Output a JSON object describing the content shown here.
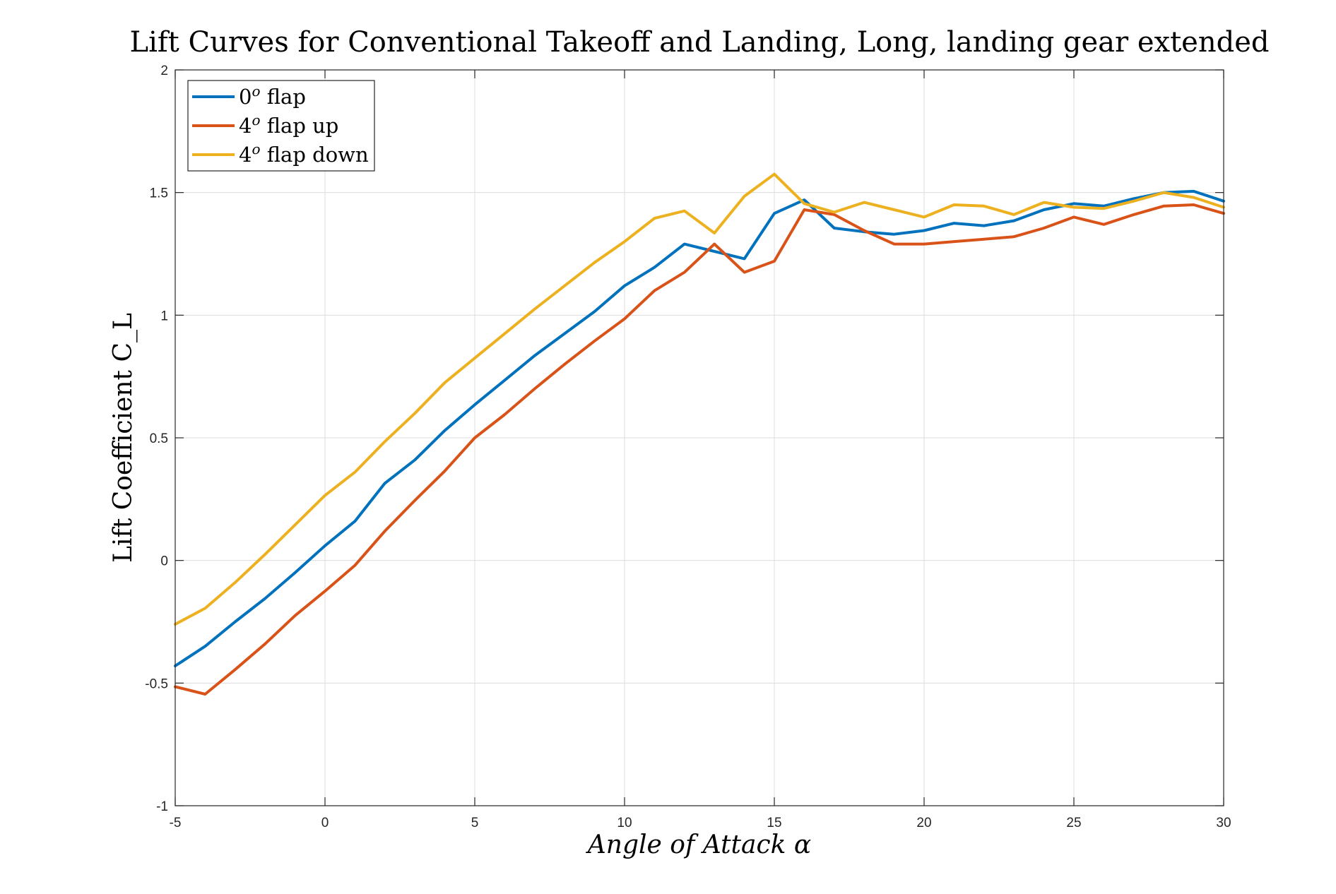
{
  "chart_data": {
    "type": "line",
    "title": "Lift Curves for Conventional Takeoff and Landing, Long, landing gear extended",
    "xlabel": "Angle of Attack α",
    "ylabel": "Lift Coefficient C_L",
    "xlim": [
      -5,
      30
    ],
    "ylim": [
      -1,
      2
    ],
    "xticks": [
      -5,
      0,
      5,
      10,
      15,
      20,
      25,
      30
    ],
    "yticks": [
      -1,
      -0.5,
      0,
      0.5,
      1,
      1.5,
      2
    ],
    "xtick_labels": [
      "-5",
      "0",
      "5",
      "10",
      "15",
      "20",
      "25",
      "30"
    ],
    "ytick_labels": [
      "-1",
      "-0.5",
      "0",
      "0.5",
      "1",
      "1.5",
      "2"
    ],
    "grid": true,
    "legend_position": "top-left",
    "x": [
      -5,
      -4,
      -3,
      -2,
      -1,
      0,
      1,
      2,
      3,
      4,
      5,
      6,
      7,
      8,
      9,
      10,
      11,
      12,
      13,
      14,
      15,
      16,
      17,
      18,
      19,
      20,
      21,
      22,
      23,
      24,
      25,
      26,
      27,
      28,
      29,
      30
    ],
    "series": [
      {
        "name": "0° flap",
        "legend_main": "0",
        "legend_sup": "o",
        "legend_rest": " flap",
        "color": "#0072bd",
        "values": [
          -0.43,
          -0.35,
          -0.25,
          -0.155,
          -0.05,
          0.06,
          0.16,
          0.315,
          0.41,
          0.53,
          0.635,
          0.735,
          0.835,
          0.925,
          1.015,
          1.12,
          1.195,
          1.29,
          1.26,
          1.23,
          1.415,
          1.47,
          1.355,
          1.34,
          1.33,
          1.345,
          1.375,
          1.365,
          1.385,
          1.43,
          1.455,
          1.445,
          1.475,
          1.5,
          1.505,
          1.465
        ]
      },
      {
        "name": "4° flap up",
        "legend_main": "4",
        "legend_sup": "o",
        "legend_rest": " flap up",
        "color": "#d95319",
        "values": [
          -0.515,
          -0.545,
          -0.445,
          -0.34,
          -0.225,
          -0.125,
          -0.02,
          0.12,
          0.245,
          0.365,
          0.5,
          0.595,
          0.7,
          0.8,
          0.895,
          0.985,
          1.1,
          1.175,
          1.29,
          1.175,
          1.22,
          1.43,
          1.41,
          1.345,
          1.29,
          1.29,
          1.3,
          1.31,
          1.32,
          1.355,
          1.4,
          1.37,
          1.41,
          1.445,
          1.45,
          1.415
        ]
      },
      {
        "name": "4° flap down",
        "legend_main": "4",
        "legend_sup": "o",
        "legend_rest": " flap down",
        "color": "#edb120",
        "values": [
          -0.26,
          -0.195,
          -0.09,
          0.025,
          0.145,
          0.265,
          0.36,
          0.485,
          0.6,
          0.725,
          0.825,
          0.925,
          1.025,
          1.12,
          1.215,
          1.3,
          1.395,
          1.425,
          1.335,
          1.485,
          1.575,
          1.455,
          1.42,
          1.46,
          1.43,
          1.4,
          1.45,
          1.445,
          1.41,
          1.46,
          1.44,
          1.435,
          1.465,
          1.5,
          1.48,
          1.44
        ]
      }
    ]
  }
}
